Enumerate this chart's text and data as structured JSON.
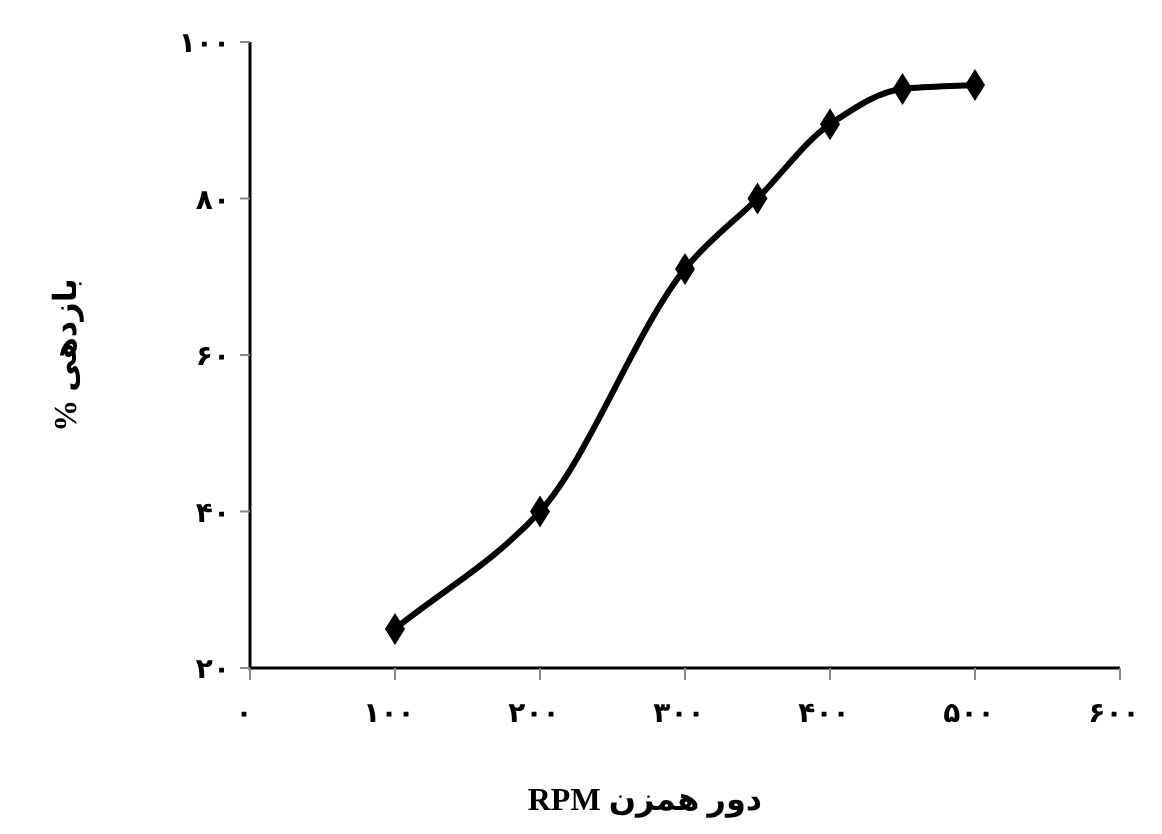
{
  "chart_data": {
    "type": "line",
    "xlabel": "دور همزن RPM",
    "ylabel": "بازدهی %",
    "x": [
      100,
      200,
      300,
      350,
      400,
      450,
      500
    ],
    "series": [
      {
        "color": "#000000",
        "values": [
          25,
          40,
          71,
          80,
          89.5,
          94,
          94.5
        ]
      }
    ],
    "xlim": [
      0,
      600
    ],
    "xticks": [
      {
        "value": 0,
        "label": "۰"
      },
      {
        "value": 100,
        "label": "۱۰۰"
      },
      {
        "value": 200,
        "label": "۲۰۰"
      },
      {
        "value": 300,
        "label": "۳۰۰"
      },
      {
        "value": 400,
        "label": "۴۰۰"
      },
      {
        "value": 500,
        "label": "۵۰۰"
      },
      {
        "value": 600,
        "label": "۶۰۰"
      }
    ],
    "ylim": [
      20,
      100
    ],
    "yticks": [
      {
        "value": 20,
        "label": "۲۰"
      },
      {
        "value": 40,
        "label": "۴۰"
      },
      {
        "value": 60,
        "label": "۶۰"
      },
      {
        "value": 80,
        "label": "۸۰"
      },
      {
        "value": 100,
        "label": "۱۰۰"
      }
    ],
    "marker": "diamond",
    "line_style": "solid"
  }
}
